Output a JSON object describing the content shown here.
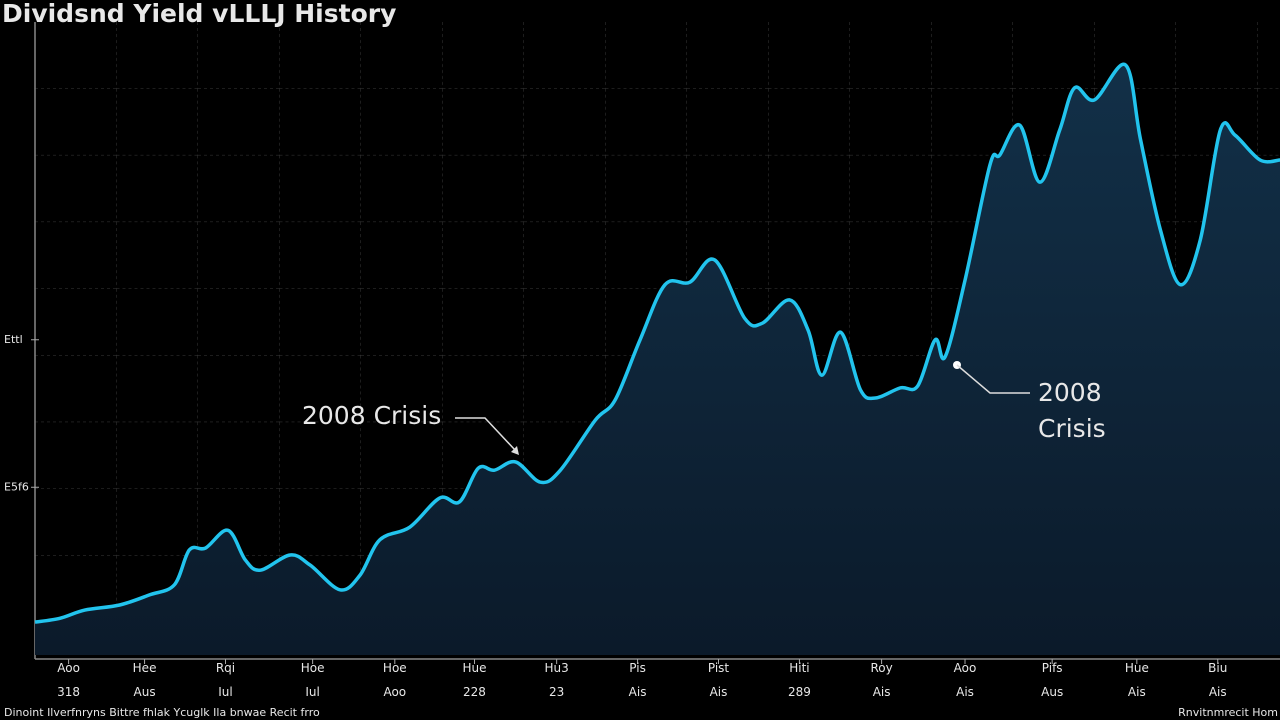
{
  "chart_data": {
    "type": "area",
    "title": "Dividsnd Yield vLLLJ History",
    "footer_left": "Dinoint Ilverfnryns Bittre fhlak Ycuglk Ila bnwae Recit frro",
    "footer_right": "Rnvitnmrecit Hom",
    "annotations": [
      {
        "text": "2008 Crisis"
      },
      {
        "text": [
          "2008",
          "Crisis"
        ]
      }
    ],
    "color": "#22c4ee",
    "xlim": [
      0,
      100
    ],
    "ylim": [
      0,
      100
    ],
    "xticks": [
      {
        "value": 2.7,
        "label": [
          "Aoo",
          "318"
        ]
      },
      {
        "value": 8.8,
        "label": [
          "Hee",
          "Aus"
        ]
      },
      {
        "value": 15.3,
        "label": [
          "Rqi",
          "Iul"
        ]
      },
      {
        "value": 22.3,
        "label": [
          "Hoe",
          "Iul"
        ]
      },
      {
        "value": 28.9,
        "label": [
          "Hoe",
          "Aoo"
        ]
      },
      {
        "value": 35.3,
        "label": [
          "Hue",
          "228"
        ]
      },
      {
        "value": 41.9,
        "label": [
          "Hu3",
          "23"
        ]
      },
      {
        "value": 48.4,
        "label": [
          "Pis",
          "Ais"
        ]
      },
      {
        "value": 54.9,
        "label": [
          "Pist",
          "Ais"
        ]
      },
      {
        "value": 61.4,
        "label": [
          "Hiti",
          "289"
        ]
      },
      {
        "value": 68,
        "label": [
          "Roy",
          "Ais"
        ]
      },
      {
        "value": 74.7,
        "label": [
          "Aoo",
          "Ais"
        ]
      },
      {
        "value": 81.7,
        "label": [
          "Pifs",
          "Aus"
        ]
      },
      {
        "value": 88.5,
        "label": [
          "Hue",
          "Ais"
        ]
      },
      {
        "value": 95,
        "label": [
          "Biu",
          "Ais"
        ]
      }
    ],
    "yticks": [
      {
        "value": 26.5,
        "label": "E5f6"
      },
      {
        "value": 49.8,
        "label": "Ettl"
      }
    ],
    "x": [
      0,
      2,
      4,
      6.8,
      9.2,
      11.2,
      12.4,
      13.7,
      15.5,
      16.9,
      18.1,
      20.5,
      22.1,
      24.5,
      26.1,
      27.7,
      30.1,
      32.5,
      34.1,
      35.6,
      36.9,
      38.6,
      40.6,
      42.2,
      45,
      46.6,
      48.6,
      50.6,
      52.6,
      54.6,
      57,
      58.4,
      60.6,
      62.1,
      63.2,
      64.7,
      66.3,
      67.5,
      69.5,
      70.9,
      72.3,
      73.1,
      74.7,
      76.7,
      77.5,
      79.1,
      80.7,
      82.3,
      83.5,
      85.1,
      87.6,
      88.8,
      90.4,
      92,
      93.6,
      95.2,
      96.4,
      98.4,
      100
    ],
    "values": [
      5.2,
      5.8,
      7.1,
      7.9,
      9.5,
      11.1,
      16.6,
      16.9,
      19.7,
      15,
      13.4,
      15.8,
      14.2,
      10.3,
      12.6,
      18.2,
      20.2,
      24.8,
      24.2,
      29.5,
      29.2,
      30.5,
      27.3,
      29.2,
      37.1,
      40.3,
      49.8,
      58.5,
      58.9,
      62.4,
      53.2,
      52.4,
      56.1,
      51.3,
      44.2,
      51,
      41.9,
      40.6,
      42.2,
      42.5,
      49.8,
      47.1,
      59.2,
      77.4,
      79,
      83.7,
      74.7,
      82.9,
      89.6,
      87.7,
      93.2,
      81.4,
      67.1,
      58.5,
      65.6,
      82.9,
      82.1,
      78.2,
      78.2
    ]
  }
}
